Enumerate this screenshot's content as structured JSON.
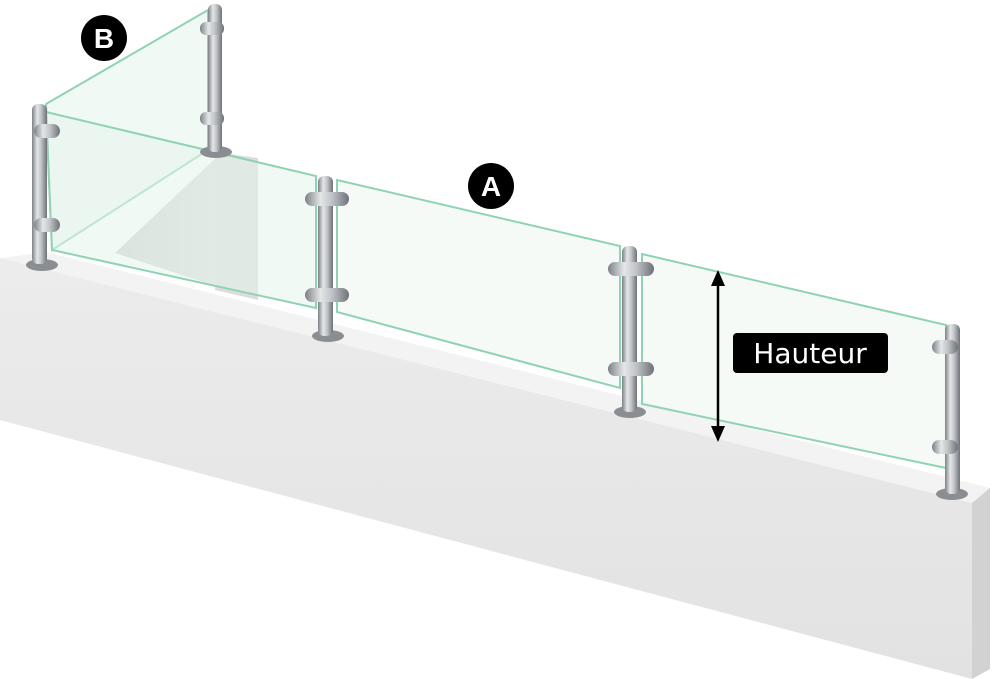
{
  "labels": {
    "a": "A",
    "b": "B",
    "height": "Hauteur"
  },
  "colors": {
    "glass_fill": "#e6f4ec",
    "glass_edge": "#8fd3b2",
    "wall_top": "#f1f1f1",
    "wall_front": "#e6e6e6",
    "wall_side": "#d5d5d5",
    "post": "#b9bcc0",
    "badge": "#000000"
  },
  "icons": {
    "height_indicator": "double-arrow-vertical-icon"
  }
}
